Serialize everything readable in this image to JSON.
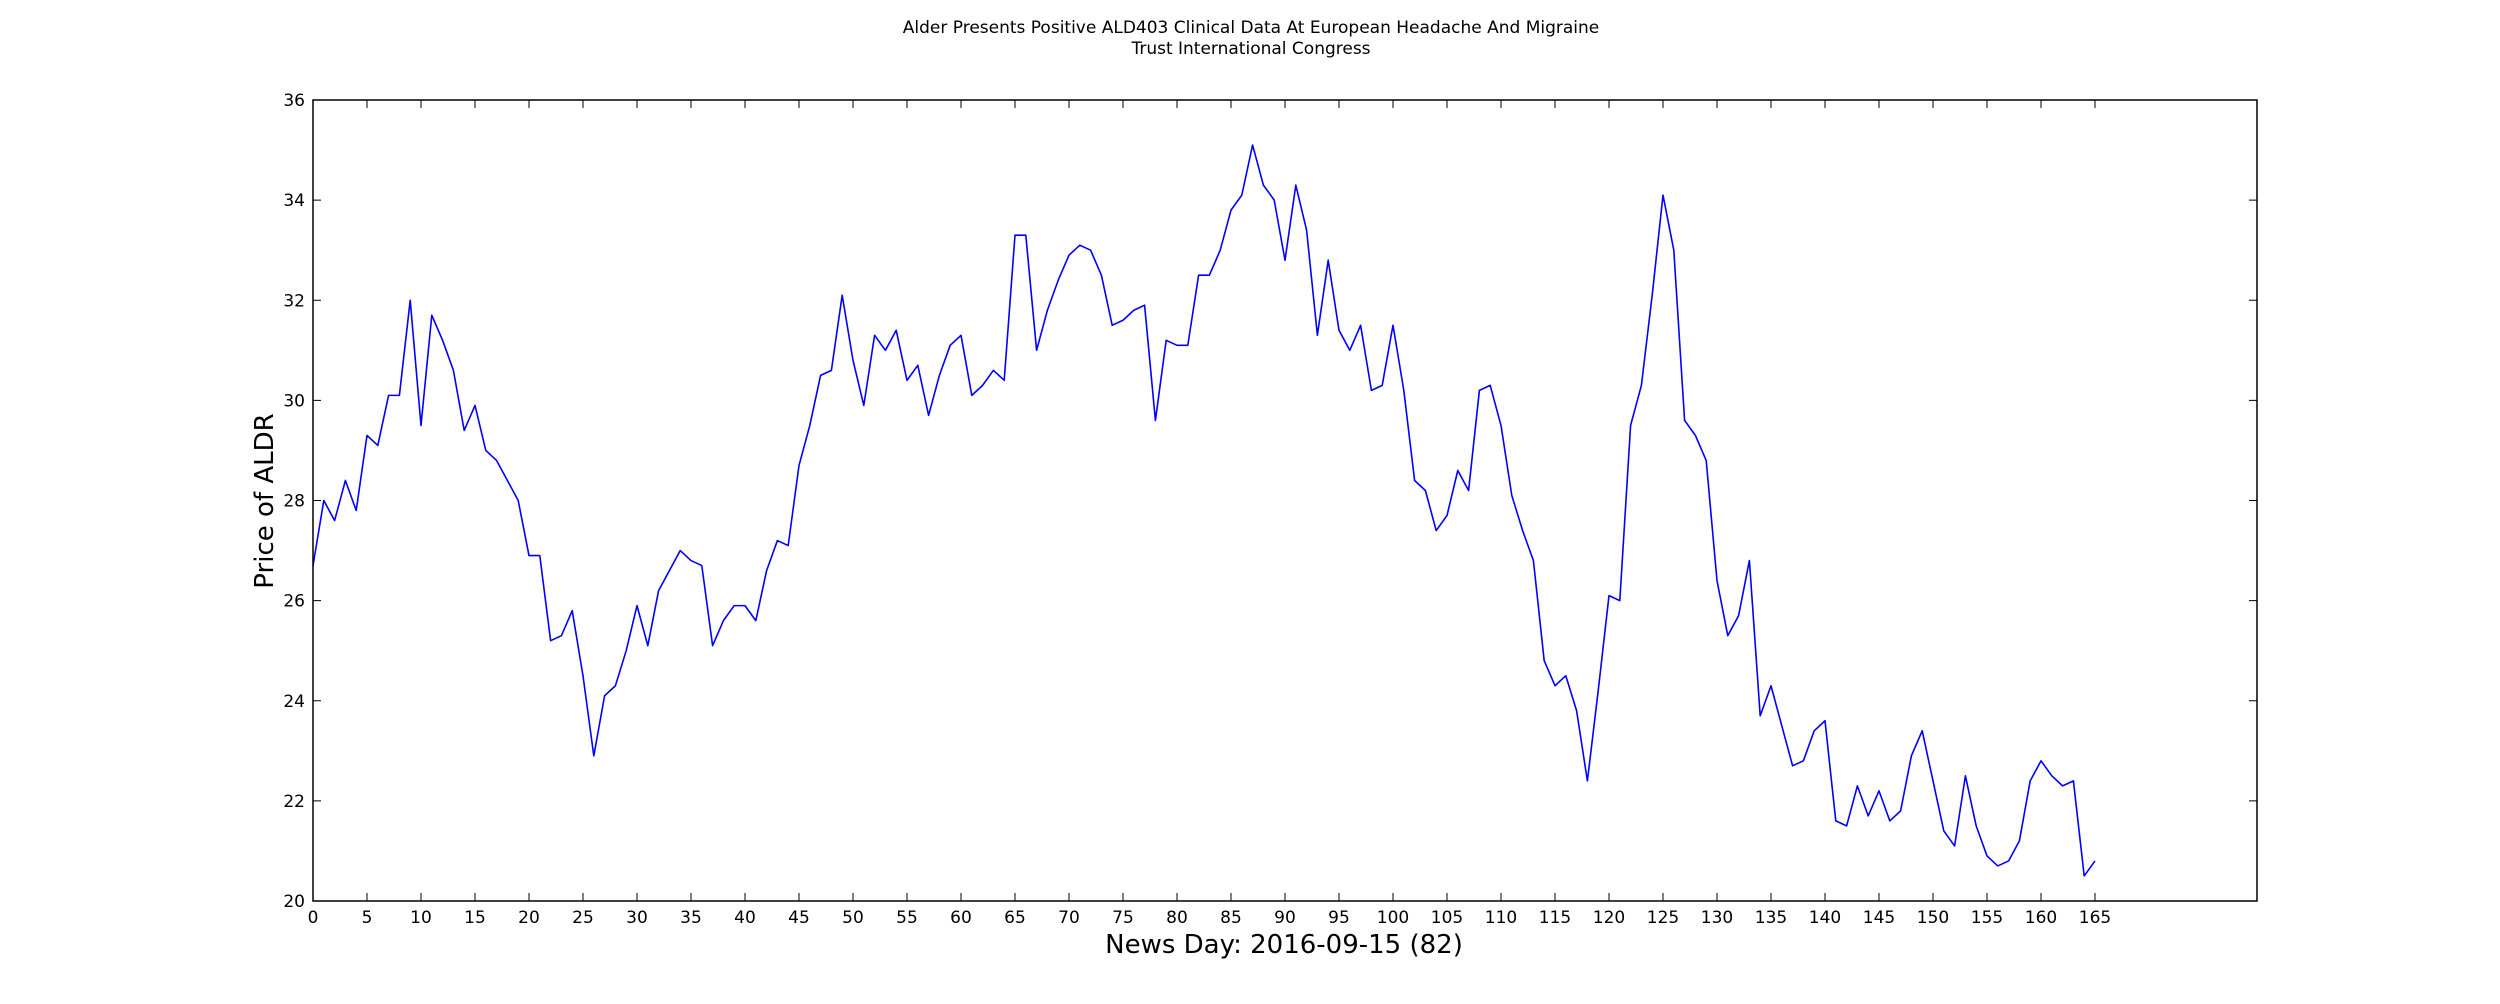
{
  "chart_data": {
    "type": "line",
    "title_line1": "Alder Presents Positive ALD403 Clinical Data At European Headache And Migraine",
    "title_line2": "Trust International Congress",
    "xlabel": "News Day: 2016-09-15 (82)",
    "ylabel": "Price of ALDR",
    "xlim": [
      0,
      180
    ],
    "ylim": [
      20,
      36
    ],
    "x_ticks": [
      0,
      5,
      10,
      15,
      20,
      25,
      30,
      35,
      40,
      45,
      50,
      55,
      60,
      65,
      70,
      75,
      80,
      85,
      90,
      95,
      100,
      105,
      110,
      115,
      120,
      125,
      130,
      135,
      140,
      145,
      150,
      155,
      160,
      165
    ],
    "y_ticks": [
      20,
      22,
      24,
      26,
      28,
      30,
      32,
      34,
      36
    ],
    "grid": false,
    "line_color": "#0000ff",
    "series": [
      {
        "values": [
          26.7,
          28.0,
          27.6,
          28.4,
          27.8,
          29.3,
          29.1,
          30.1,
          30.1,
          32.0,
          29.5,
          31.7,
          31.2,
          30.6,
          29.4,
          29.9,
          29.0,
          28.8,
          28.4,
          28.0,
          26.9,
          26.9,
          25.2,
          25.3,
          25.8,
          24.5,
          22.9,
          24.1,
          24.3,
          25.0,
          25.9,
          25.1,
          26.2,
          26.6,
          27.0,
          26.8,
          26.7,
          25.1,
          25.6,
          25.9,
          25.9,
          25.6,
          26.6,
          27.2,
          27.1,
          28.7,
          29.5,
          30.5,
          30.6,
          32.1,
          30.8,
          29.9,
          31.3,
          31.0,
          31.4,
          30.4,
          30.7,
          29.7,
          30.5,
          31.1,
          31.3,
          30.1,
          30.3,
          30.6,
          30.4,
          33.3,
          33.3,
          31.0,
          31.8,
          32.4,
          32.9,
          33.1,
          33.0,
          32.5,
          31.5,
          31.6,
          31.8,
          31.9,
          29.6,
          31.2,
          31.1,
          31.1,
          32.5,
          32.5,
          33.0,
          33.8,
          34.1,
          35.1,
          34.3,
          34.0,
          32.8,
          34.3,
          33.4,
          31.3,
          32.8,
          31.4,
          31.0,
          31.5,
          30.2,
          30.3,
          31.5,
          30.2,
          28.4,
          28.2,
          27.4,
          27.7,
          28.6,
          28.2,
          30.2,
          30.3,
          29.5,
          28.1,
          27.4,
          26.8,
          24.8,
          24.3,
          24.5,
          23.8,
          22.4,
          24.2,
          26.1,
          26.0,
          29.5,
          30.3,
          32.1,
          34.1,
          33.0,
          29.6,
          29.3,
          28.8,
          26.4,
          25.3,
          25.7,
          26.8,
          23.7,
          24.3,
          23.5,
          22.7,
          22.8,
          23.4,
          23.6,
          21.6,
          21.5,
          22.3,
          21.7,
          22.2,
          21.6,
          21.8,
          22.9,
          23.4,
          22.4,
          21.4,
          21.1,
          22.5,
          21.5,
          20.9,
          20.7,
          20.8,
          21.2,
          22.4,
          22.8,
          22.5,
          22.3,
          22.4,
          20.5,
          20.8
        ]
      }
    ]
  }
}
